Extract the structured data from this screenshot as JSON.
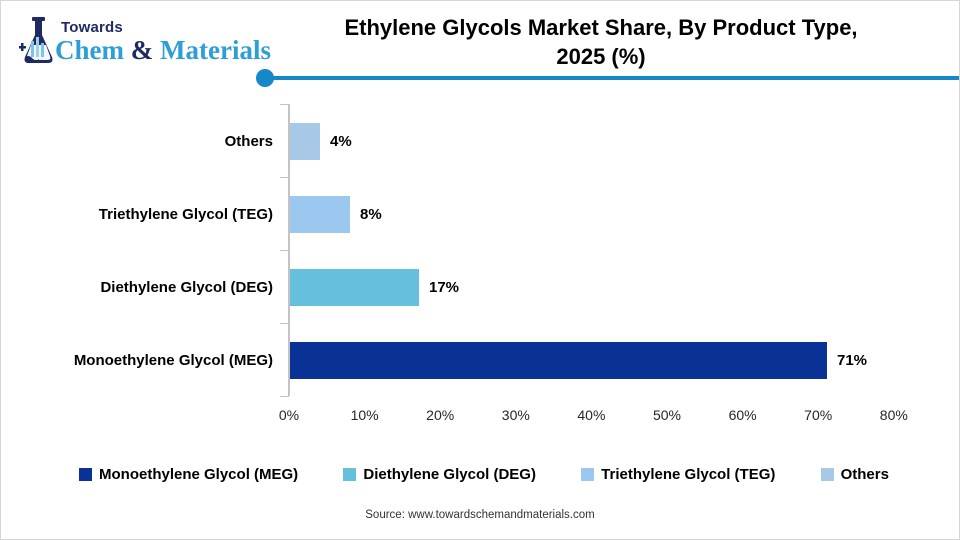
{
  "logo": {
    "towards": "Towards",
    "chem": "Chem",
    "ampersand": " & ",
    "materials": "Materials"
  },
  "header": {
    "title_line1": "Ethylene Glycols Market Share, By Product Type,",
    "title_line2": "2025 (%)"
  },
  "chart_data": {
    "type": "bar",
    "orientation": "horizontal",
    "title": "Ethylene Glycols Market Share, By Product Type, 2025 (%)",
    "categories": [
      "Others",
      "Triethylene Glycol (TEG)",
      "Diethylene Glycol (DEG)",
      "Monoethylene Glycol (MEG)"
    ],
    "values": [
      4,
      8,
      17,
      71
    ],
    "data_labels": [
      "4%",
      "8%",
      "17%",
      "71%"
    ],
    "bar_colors": [
      "#a7c9e7",
      "#9cc7ee",
      "#66bfdc",
      "#0a3196"
    ],
    "xlim": [
      0,
      80
    ],
    "x_tick_labels": [
      "0%",
      "10%",
      "20%",
      "30%",
      "40%",
      "50%",
      "60%",
      "70%",
      "80%"
    ],
    "x_tick_values": [
      0,
      10,
      20,
      30,
      40,
      50,
      60,
      70,
      80
    ],
    "grid": false,
    "legend_position": "bottom"
  },
  "legend": {
    "items": [
      {
        "label": "Monoethylene Glycol (MEG)",
        "color": "#0a3196"
      },
      {
        "label": "Diethylene Glycol (DEG)",
        "color": "#66bfdc"
      },
      {
        "label": "Triethylene Glycol (TEG)",
        "color": "#9cc7ee"
      },
      {
        "label": "Others",
        "color": "#a7c9e7"
      }
    ]
  },
  "footer": {
    "source": "Source: www.towardschemandmaterials.com"
  },
  "colors": {
    "divider_blue": "#1588c9",
    "axis_gray": "#c3c3c3",
    "logo_navy": "#1f2a63",
    "logo_blue": "#2e9fd6",
    "text_black": "#000000"
  }
}
